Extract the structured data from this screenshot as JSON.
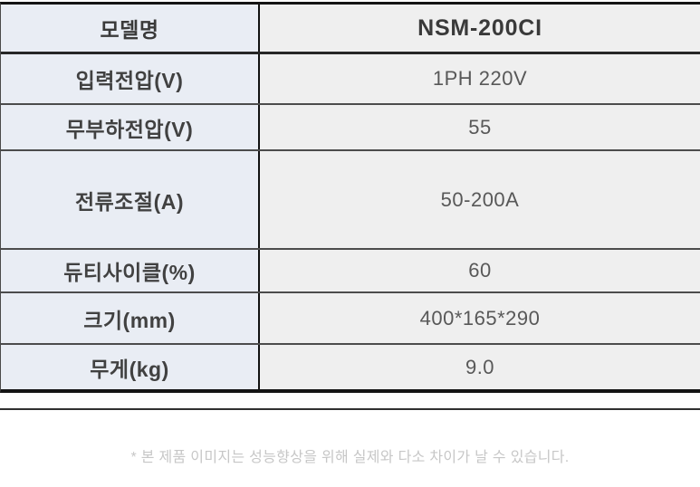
{
  "table": {
    "header": {
      "label": "모델명",
      "value": "NSM-200CI"
    },
    "rows": [
      {
        "label": "입력전압(V)",
        "value": "1PH 220V"
      },
      {
        "label": "무부하전압(V)",
        "value": "55"
      },
      {
        "label": "전류조절(A)",
        "value": "50-200A"
      },
      {
        "label": "듀티사이클(%)",
        "value": "60"
      },
      {
        "label": "크기(mm)",
        "value": "400*165*290"
      },
      {
        "label": "무게(kg)",
        "value": "9.0"
      }
    ]
  },
  "footer": {
    "note": "* 본 제품 이미지는 성능향상을 위해 실제와 다소 차이가 날 수 있습니다."
  },
  "colors": {
    "label_column_bg": "#e9edf4",
    "value_column_bg": "#efefef",
    "border": "#141414",
    "label_text": "#414141",
    "value_text": "#585858",
    "footnote_text": "#c7c7c7"
  }
}
